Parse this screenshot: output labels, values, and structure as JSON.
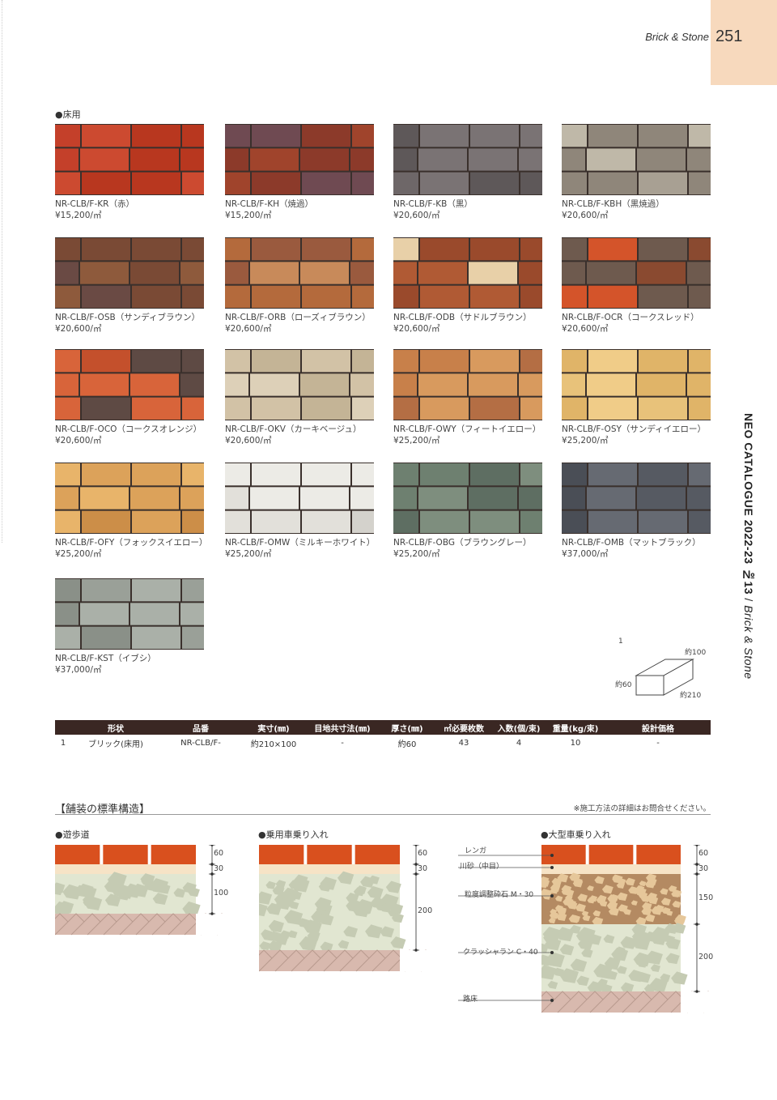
{
  "header": {
    "running_title": "Brick & Stone",
    "page_number": "251"
  },
  "side": {
    "catalogue": "NEO CATALOGUE 2022-23 №13",
    "separator": " / ",
    "section": "Brick & Stone"
  },
  "floor_label": "●床用",
  "swatches": [
    {
      "code": "NR-CLB/F-KR（赤）",
      "price": "¥15,200/㎡",
      "colors": [
        "#c4402a",
        "#b8371f",
        "#cc4a30"
      ]
    },
    {
      "code": "NR-CLB/F-KH（焼過）",
      "price": "¥15,200/㎡",
      "colors": [
        "#8c3a2a",
        "#6f4a52",
        "#a0442c"
      ]
    },
    {
      "code": "NR-CLB/F-KB（黒）",
      "price": "¥20,600/㎡",
      "colors": [
        "#6e6768",
        "#5e5859",
        "#7a7374"
      ]
    },
    {
      "code": "NR-CLB/F-KBH（黒焼過）",
      "price": "¥20,600/㎡",
      "colors": [
        "#a8a093",
        "#8f867a",
        "#bfb8a8"
      ]
    },
    {
      "code": "NR-CLB/F-OSB（サンディブラウン）",
      "price": "¥20,600/㎡",
      "colors": [
        "#7a4a35",
        "#6a4a44",
        "#8e5a3c"
      ]
    },
    {
      "code": "NR-CLB/F-ORB（ローズィブラウン）",
      "price": "¥20,600/㎡",
      "colors": [
        "#b46a3c",
        "#9a5a3e",
        "#c88a5a"
      ]
    },
    {
      "code": "NR-CLB/F-ODB（サドルブラウン）",
      "price": "¥20,600/㎡",
      "colors": [
        "#9a4a2c",
        "#e8d0a8",
        "#b05a34"
      ]
    },
    {
      "code": "NR-CLB/F-OCR（コークスレッド）",
      "price": "¥20,600/㎡",
      "colors": [
        "#8a4a30",
        "#d4542a",
        "#6e5a4e"
      ]
    },
    {
      "code": "NR-CLB/F-OCO（コークスオレンジ）",
      "price": "¥20,600/㎡",
      "colors": [
        "#c4502c",
        "#5e4a44",
        "#d8643a"
      ]
    },
    {
      "code": "NR-CLB/F-OKV（カーキベージュ）",
      "price": "¥20,600/㎡",
      "colors": [
        "#d2c2a6",
        "#c4b496",
        "#ddd0b8"
      ]
    },
    {
      "code": "NR-CLB/F-OWY（フィートイエロー）",
      "price": "¥25,200/㎡",
      "colors": [
        "#c8804a",
        "#b46e44",
        "#d89a5e"
      ]
    },
    {
      "code": "NR-CLB/F-OSY（サンディイエロー）",
      "price": "¥25,200/㎡",
      "colors": [
        "#e8c27a",
        "#e0b468",
        "#f0cc88"
      ]
    },
    {
      "code": "NR-CLB/F-OFY（フォックスイエロー）",
      "price": "¥25,200/㎡",
      "colors": [
        "#dca25a",
        "#cc8e48",
        "#e8b46a"
      ]
    },
    {
      "code": "NR-CLB/F-OMW（ミルキーホワイト）",
      "price": "¥25,200/㎡",
      "colors": [
        "#e2e0da",
        "#d4d2cc",
        "#ecebe6"
      ]
    },
    {
      "code": "NR-CLB/F-OBG（ブラウングレー）",
      "price": "¥25,200/㎡",
      "colors": [
        "#6e8070",
        "#5e6e62",
        "#7e8e7e"
      ]
    },
    {
      "code": "NR-CLB/F-OMB（マットブラック）",
      "price": "¥37,000/㎡",
      "colors": [
        "#565a62",
        "#4a4e56",
        "#666a72"
      ]
    },
    {
      "code": "NR-CLB/F-KST（イブシ）",
      "price": "¥37,000/㎡",
      "colors": [
        "#9aa098",
        "#8a9088",
        "#aab0a8"
      ]
    }
  ],
  "dimension_figure": {
    "item_no": "1",
    "len": "約210",
    "width": "約100",
    "height": "約60"
  },
  "table": {
    "headers": [
      "",
      "形状",
      "品番",
      "実寸(㎜)",
      "目地共寸法(㎜)",
      "厚さ(㎜)",
      "㎡必要枚数",
      "入数(個/束)",
      "重量(kg/束)",
      "設計価格"
    ],
    "rows": [
      [
        "1",
        "ブリック(床用)",
        "NR-CLB/F-",
        "約210×100",
        "-",
        "約60",
        "43",
        "4",
        "10",
        "-"
      ]
    ]
  },
  "paving": {
    "title": "【舗装の標準構造】",
    "note": "※施工方法の詳細はお問合せください。",
    "sections": [
      {
        "label": "●遊歩道",
        "dims": [
          "60",
          "30",
          "100"
        ]
      },
      {
        "label": "●乗用車乗り入れ",
        "dims": [
          "60",
          "30",
          "200"
        ]
      },
      {
        "label": "●大型車乗り入れ",
        "dims": [
          "60",
          "30",
          "150",
          "200"
        ],
        "layers": [
          "レンガ",
          "川砂（中目）",
          "粒度調整砕石 M・30",
          "クラッシャラン C・40",
          "路床"
        ]
      }
    ]
  },
  "colors": {
    "brick_orange": "#d9501e",
    "sand": "#f6e3c6",
    "gravel_bg": "#e1e6d1",
    "gravel_stone": "#c5cbb3",
    "subgrade": "#d8b9ae",
    "header_bar": "#3a2723",
    "tab": "#f7d9bd"
  }
}
